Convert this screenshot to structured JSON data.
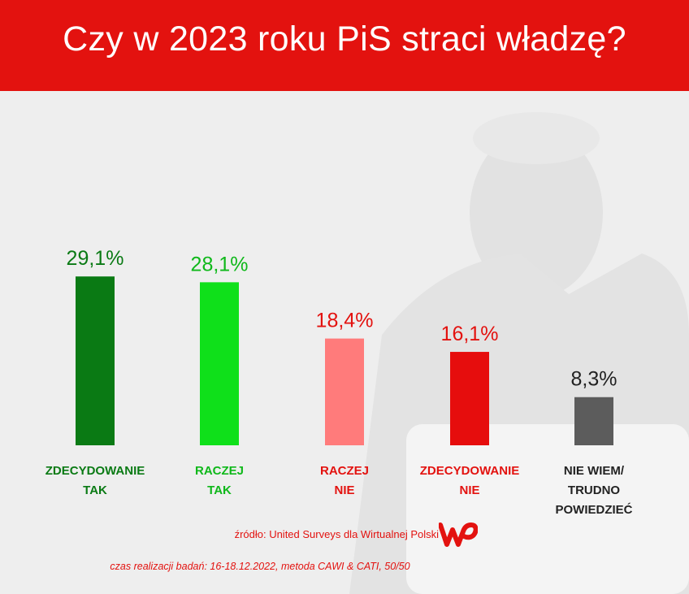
{
  "header": {
    "title": "Czy w 2023 roku PiS straci władzę?"
  },
  "chart_data": {
    "type": "bar",
    "title": "Czy w 2023 roku PiS straci władzę?",
    "categories": [
      [
        "ZDECYDOWANIE",
        "TAK"
      ],
      [
        "RACZEJ",
        "TAK"
      ],
      [
        "RACZEJ",
        "NIE"
      ],
      [
        "ZDECYDOWANIE",
        "NIE"
      ],
      [
        "NIE WIEM/",
        "TRUDNO",
        "POWIEDZIEĆ"
      ]
    ],
    "values": [
      29.1,
      28.1,
      18.4,
      16.1,
      8.3
    ],
    "value_labels": [
      "29,1%",
      "28,1%",
      "18,4%",
      "16,1%",
      "8,3%"
    ],
    "colors": [
      "#0a7a14",
      "#0fe01a",
      "#ff7b7b",
      "#e60d0d",
      "#5c5c5c"
    ],
    "label_colors": [
      "#0a7a14",
      "#0fb81a",
      "#e3120f",
      "#e3120f",
      "#222222"
    ],
    "grid": false
  },
  "footer": {
    "source": "źródło: United Surveys dla Wirtualnej Polski",
    "method": "czas realizacji badań: 16-18.12.2022, metoda CAWI & CATI, 50/50",
    "logo": "WP"
  }
}
